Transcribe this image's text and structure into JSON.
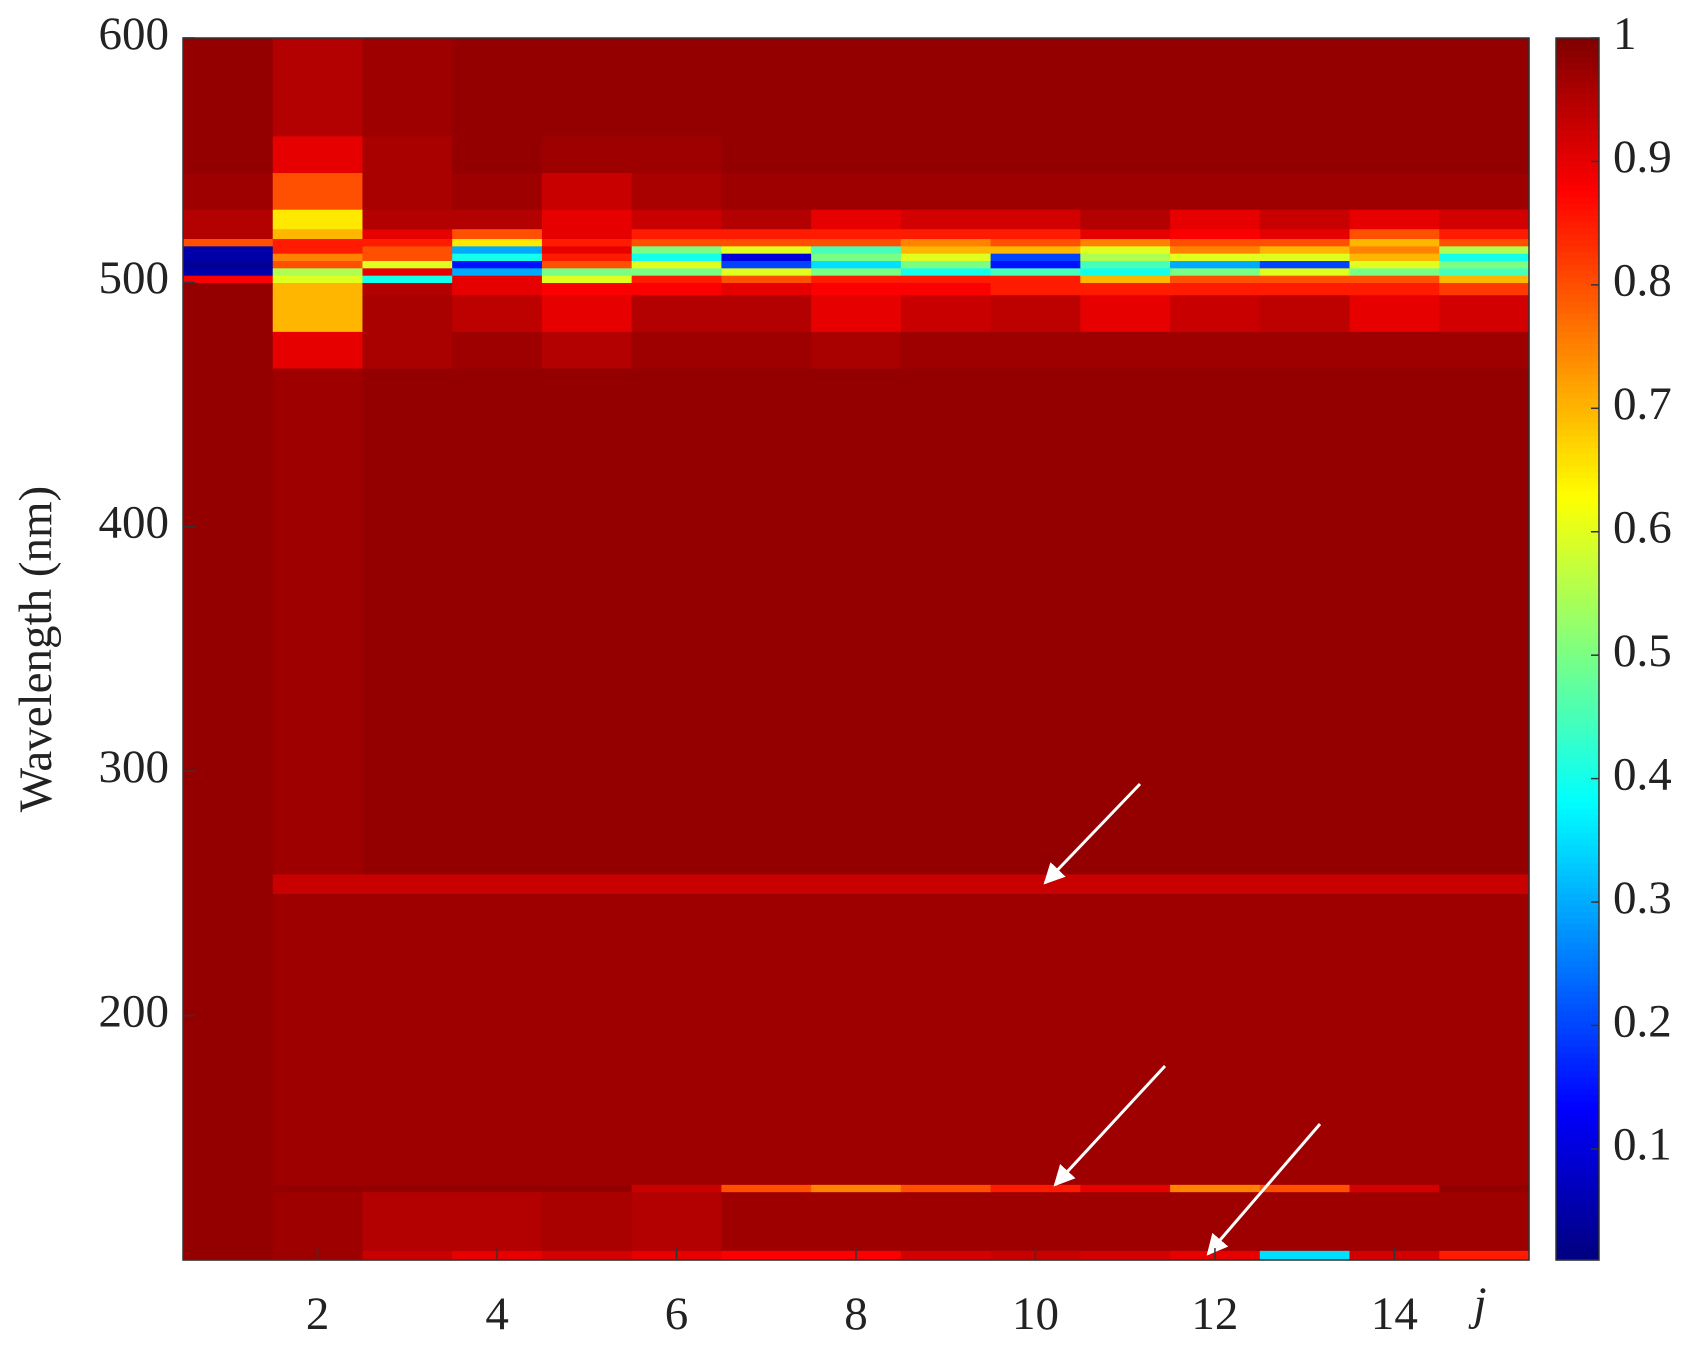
{
  "chart_data": {
    "type": "heatmap",
    "y_label": "Wavelength (nm)",
    "x_label": "j",
    "x": [
      1,
      2,
      3,
      4,
      5,
      6,
      7,
      8,
      9,
      10,
      11,
      12,
      13,
      14,
      15
    ],
    "xlim": [
      0.5,
      15.5
    ],
    "xticks": [
      2,
      4,
      6,
      8,
      10,
      12,
      14
    ],
    "y_edges": [
      100,
      104,
      128,
      131,
      250,
      258,
      465,
      480,
      495,
      500,
      503,
      506,
      509,
      512,
      515,
      518,
      522,
      530,
      545,
      560,
      600
    ],
    "ylim": [
      100,
      600
    ],
    "yticks": [
      200,
      300,
      400,
      500,
      600
    ],
    "colormap": "jet",
    "clim": [
      0.01,
      1
    ],
    "colorbar_ticks": [
      0.1,
      0.2,
      0.3,
      0.4,
      0.5,
      0.6,
      0.7,
      0.8,
      0.9,
      1
    ],
    "values": [
      [
        0.98,
        0.97,
        0.93,
        0.9,
        0.92,
        0.9,
        0.88,
        0.88,
        0.92,
        0.93,
        0.92,
        0.9,
        0.35,
        0.92,
        0.85
      ],
      [
        0.98,
        0.97,
        0.95,
        0.95,
        0.96,
        0.95,
        0.97,
        0.97,
        0.97,
        0.97,
        0.97,
        0.97,
        0.97,
        0.97,
        0.97
      ],
      [
        0.98,
        0.98,
        0.98,
        0.98,
        0.98,
        0.93,
        0.8,
        0.75,
        0.8,
        0.85,
        0.9,
        0.75,
        0.8,
        0.92,
        0.98
      ],
      [
        0.98,
        0.97,
        0.97,
        0.97,
        0.97,
        0.97,
        0.97,
        0.97,
        0.97,
        0.97,
        0.97,
        0.97,
        0.97,
        0.97,
        0.97
      ],
      [
        0.98,
        0.93,
        0.93,
        0.93,
        0.93,
        0.93,
        0.93,
        0.93,
        0.93,
        0.93,
        0.93,
        0.93,
        0.93,
        0.93,
        0.93
      ],
      [
        0.98,
        0.97,
        0.98,
        0.98,
        0.98,
        0.98,
        0.98,
        0.98,
        0.98,
        0.98,
        0.98,
        0.98,
        0.98,
        0.98,
        0.98
      ],
      [
        0.98,
        0.9,
        0.96,
        0.97,
        0.95,
        0.97,
        0.97,
        0.96,
        0.97,
        0.97,
        0.97,
        0.97,
        0.97,
        0.97,
        0.97
      ],
      [
        0.98,
        0.7,
        0.96,
        0.94,
        0.9,
        0.95,
        0.95,
        0.9,
        0.93,
        0.94,
        0.9,
        0.93,
        0.94,
        0.9,
        0.92
      ],
      [
        0.98,
        0.7,
        0.95,
        0.9,
        0.88,
        0.88,
        0.9,
        0.88,
        0.88,
        0.85,
        0.85,
        0.85,
        0.85,
        0.85,
        0.82
      ],
      [
        0.88,
        0.6,
        0.4,
        0.9,
        0.6,
        0.85,
        0.8,
        0.85,
        0.85,
        0.85,
        0.7,
        0.8,
        0.8,
        0.8,
        0.7
      ],
      [
        0.05,
        0.55,
        0.9,
        0.3,
        0.5,
        0.5,
        0.6,
        0.5,
        0.4,
        0.45,
        0.4,
        0.5,
        0.6,
        0.5,
        0.45
      ],
      [
        0.03,
        0.8,
        0.6,
        0.15,
        0.8,
        0.6,
        0.2,
        0.35,
        0.5,
        0.15,
        0.45,
        0.3,
        0.2,
        0.6,
        0.5
      ],
      [
        0.05,
        0.75,
        0.8,
        0.4,
        0.85,
        0.4,
        0.1,
        0.5,
        0.6,
        0.2,
        0.55,
        0.6,
        0.6,
        0.7,
        0.4
      ],
      [
        0.05,
        0.85,
        0.8,
        0.3,
        0.9,
        0.5,
        0.6,
        0.45,
        0.7,
        0.7,
        0.6,
        0.75,
        0.7,
        0.75,
        0.55
      ],
      [
        0.8,
        0.85,
        0.85,
        0.65,
        0.85,
        0.8,
        0.8,
        0.8,
        0.75,
        0.8,
        0.75,
        0.8,
        0.8,
        0.7,
        0.8
      ],
      [
        0.95,
        0.7,
        0.9,
        0.8,
        0.9,
        0.85,
        0.85,
        0.85,
        0.85,
        0.85,
        0.9,
        0.88,
        0.9,
        0.8,
        0.85
      ],
      [
        0.95,
        0.65,
        0.95,
        0.95,
        0.9,
        0.93,
        0.95,
        0.9,
        0.92,
        0.92,
        0.95,
        0.9,
        0.93,
        0.9,
        0.92
      ],
      [
        0.97,
        0.8,
        0.96,
        0.97,
        0.93,
        0.96,
        0.97,
        0.97,
        0.97,
        0.97,
        0.97,
        0.97,
        0.97,
        0.97,
        0.97
      ],
      [
        0.98,
        0.9,
        0.96,
        0.98,
        0.97,
        0.97,
        0.98,
        0.98,
        0.98,
        0.98,
        0.98,
        0.98,
        0.98,
        0.98,
        0.98
      ],
      [
        0.98,
        0.95,
        0.97,
        0.98,
        0.98,
        0.98,
        0.98,
        0.98,
        0.98,
        0.98,
        0.98,
        0.98,
        0.98,
        0.98,
        0.98
      ]
    ]
  }
}
